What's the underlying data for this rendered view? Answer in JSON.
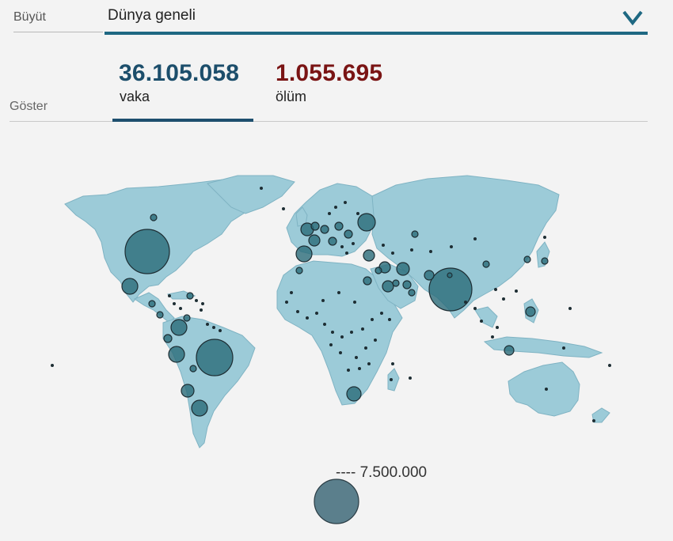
{
  "zoom": {
    "label": "Büyüt",
    "selected": "Dünya geneli",
    "icon": "chevron-down-icon"
  },
  "display": {
    "label": "Göster",
    "tabs": [
      {
        "value": "36.105.058",
        "label": "vaka",
        "active": true,
        "color": "#1c4e6b"
      },
      {
        "value": "1.055.695",
        "label": "ölüm",
        "active": false,
        "color": "#7a1414"
      }
    ]
  },
  "map": {
    "land_color": "#9ccbd8",
    "bubble_color": "#2a6b79"
  },
  "legend": {
    "value_text": "---- 7.500.000"
  }
}
